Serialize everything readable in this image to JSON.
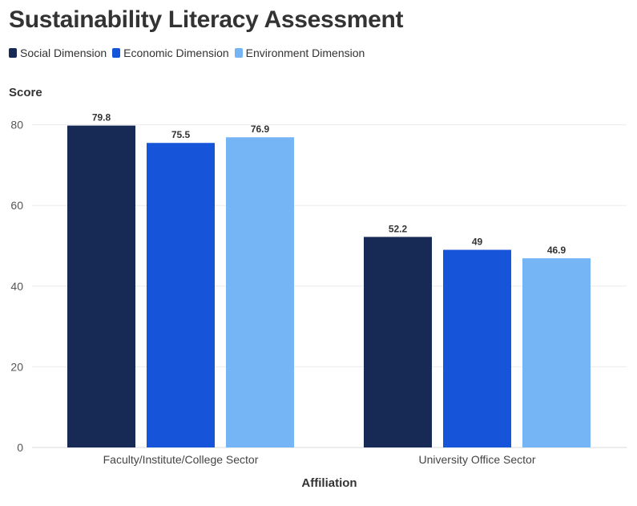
{
  "chart_data": {
    "type": "bar",
    "title": "Sustainability Literacy Assessment",
    "xlabel": "Affiliation",
    "ylabel": "Score",
    "categories": [
      "Faculty/Institute/College Sector",
      "University Office Sector"
    ],
    "series": [
      {
        "name": "Social Dimension",
        "color": "#172a55",
        "values": [
          79.8,
          52.2
        ],
        "labels": [
          "79.8",
          "52.2"
        ]
      },
      {
        "name": "Economic Dimension",
        "color": "#1655d9",
        "values": [
          75.5,
          49
        ],
        "labels": [
          "75.5",
          "49"
        ]
      },
      {
        "name": "Environment Dimension",
        "color": "#76b5f5",
        "values": [
          76.9,
          46.9
        ],
        "labels": [
          "76.9",
          "46.9"
        ]
      }
    ],
    "yticks": [
      0,
      20,
      40,
      60,
      80
    ],
    "ylim": [
      0,
      80.4
    ],
    "grid": true,
    "legend_position": "top-left"
  }
}
